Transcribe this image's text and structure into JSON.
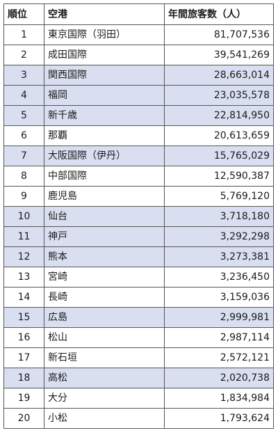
{
  "table": {
    "headers": {
      "rank": "順位",
      "airport": "空港",
      "passengers": "年間旅客数（人）"
    },
    "rows": [
      {
        "rank": "1",
        "airport": "東京国際（羽田）",
        "passengers": "81,707,536",
        "highlighted": false
      },
      {
        "rank": "2",
        "airport": "成田国際",
        "passengers": "39,541,269",
        "highlighted": false
      },
      {
        "rank": "3",
        "airport": "関西国際",
        "passengers": "28,663,014",
        "highlighted": true
      },
      {
        "rank": "4",
        "airport": "福岡",
        "passengers": "23,035,578",
        "highlighted": true
      },
      {
        "rank": "5",
        "airport": "新千歳",
        "passengers": "22,814,950",
        "highlighted": true
      },
      {
        "rank": "6",
        "airport": "那覇",
        "passengers": "20,613,659",
        "highlighted": false
      },
      {
        "rank": "7",
        "airport": "大阪国際（伊丹）",
        "passengers": "15,765,029",
        "highlighted": true
      },
      {
        "rank": "8",
        "airport": "中部国際",
        "passengers": "12,590,387",
        "highlighted": false
      },
      {
        "rank": "9",
        "airport": "鹿児島",
        "passengers": "5,769,120",
        "highlighted": false
      },
      {
        "rank": "10",
        "airport": "仙台",
        "passengers": "3,718,180",
        "highlighted": true
      },
      {
        "rank": "11",
        "airport": "神戸",
        "passengers": "3,292,298",
        "highlighted": true
      },
      {
        "rank": "12",
        "airport": "熊本",
        "passengers": "3,273,381",
        "highlighted": true
      },
      {
        "rank": "13",
        "airport": "宮崎",
        "passengers": "3,236,450",
        "highlighted": false
      },
      {
        "rank": "14",
        "airport": "長崎",
        "passengers": "3,159,036",
        "highlighted": false
      },
      {
        "rank": "15",
        "airport": "広島",
        "passengers": "2,999,981",
        "highlighted": true
      },
      {
        "rank": "16",
        "airport": "松山",
        "passengers": "2,987,114",
        "highlighted": false
      },
      {
        "rank": "17",
        "airport": "新石垣",
        "passengers": "2,572,121",
        "highlighted": false
      },
      {
        "rank": "18",
        "airport": "高松",
        "passengers": "2,020,738",
        "highlighted": true
      },
      {
        "rank": "19",
        "airport": "大分",
        "passengers": "1,834,984",
        "highlighted": false
      },
      {
        "rank": "20",
        "airport": "小松",
        "passengers": "1,793,624",
        "highlighted": false
      }
    ]
  },
  "colors": {
    "highlight_row": "#d9dff0",
    "border": "#555555"
  }
}
